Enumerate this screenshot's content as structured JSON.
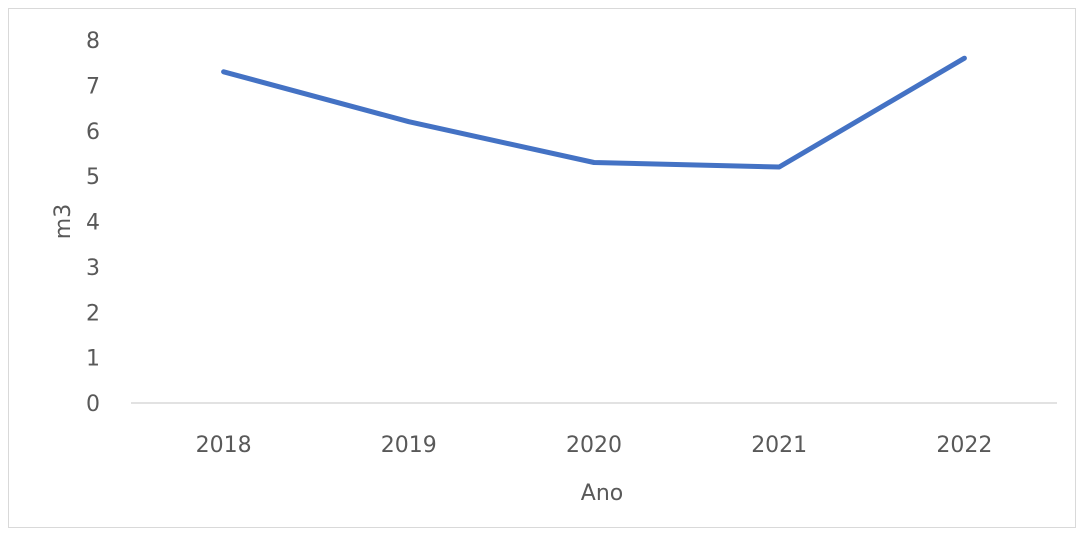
{
  "chart_data": {
    "type": "line",
    "title": "",
    "xlabel": "Ano",
    "ylabel": "m3",
    "categories": [
      "2018",
      "2019",
      "2020",
      "2021",
      "2022"
    ],
    "yticks": [
      "0",
      "1",
      "2",
      "3",
      "4",
      "5",
      "6",
      "7",
      "8"
    ],
    "ylim": [
      0,
      8
    ],
    "grid": false,
    "legend": "none",
    "series": [
      {
        "values": [
          7.3,
          6.2,
          5.3,
          5.2,
          7.6
        ],
        "color": "#4472c4"
      }
    ],
    "axis_color": "#d9d9d9",
    "text_color": "#595959"
  }
}
